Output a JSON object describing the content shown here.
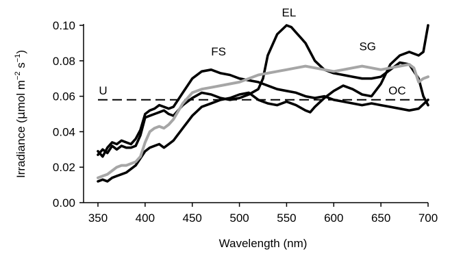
{
  "chart_data": {
    "type": "line",
    "title": "",
    "xlabel": "Wavelength (nm)",
    "ylabel_parts": [
      "Irradiance (",
      "μ",
      "mol m",
      "−2",
      " s",
      "−1",
      ")"
    ],
    "xlim": [
      350,
      700
    ],
    "ylim": [
      0,
      0.1
    ],
    "xticks": [
      350,
      400,
      450,
      500,
      550,
      600,
      650,
      700
    ],
    "xtick_labels": [
      "350",
      "400",
      "450",
      "500",
      "550",
      "600",
      "650",
      "700"
    ],
    "yticks": [
      0,
      0.02,
      0.04,
      0.06,
      0.08,
      0.1
    ],
    "ytick_labels": [
      "0.00",
      "0.02",
      "0.04",
      "0.06",
      "0.08",
      "0.10"
    ],
    "grid": false,
    "legend": "none",
    "series": [
      {
        "name": "U",
        "color": "#000000",
        "style": "dashed",
        "x": [
          350,
          700
        ],
        "y": [
          0.058,
          0.058
        ]
      },
      {
        "name": "FS",
        "color": "#000000",
        "style": "solid",
        "x": [
          350,
          355,
          360,
          365,
          370,
          375,
          380,
          385,
          390,
          395,
          400,
          405,
          410,
          415,
          420,
          425,
          430,
          440,
          450,
          460,
          470,
          480,
          490,
          500,
          510,
          520,
          530,
          540,
          550,
          560,
          570,
          580,
          590,
          600,
          610,
          620,
          630,
          640,
          650,
          660,
          670,
          680,
          690,
          700
        ],
        "y": [
          0.029,
          0.026,
          0.031,
          0.034,
          0.033,
          0.035,
          0.034,
          0.033,
          0.036,
          0.041,
          0.05,
          0.052,
          0.053,
          0.055,
          0.054,
          0.053,
          0.054,
          0.062,
          0.07,
          0.074,
          0.075,
          0.073,
          0.072,
          0.07,
          0.069,
          0.068,
          0.066,
          0.064,
          0.063,
          0.062,
          0.06,
          0.059,
          0.06,
          0.058,
          0.057,
          0.056,
          0.055,
          0.056,
          0.055,
          0.054,
          0.053,
          0.052,
          0.053,
          0.058
        ]
      },
      {
        "name": "EL",
        "color": "#000000",
        "style": "solid",
        "x": [
          350,
          355,
          360,
          365,
          370,
          375,
          380,
          385,
          390,
          395,
          400,
          405,
          410,
          415,
          420,
          425,
          430,
          440,
          450,
          460,
          470,
          480,
          490,
          500,
          510,
          520,
          525,
          530,
          540,
          550,
          555,
          560,
          565,
          570,
          580,
          590,
          600,
          610,
          620,
          630,
          640,
          650,
          660,
          670,
          680,
          690,
          695,
          700
        ],
        "y": [
          0.027,
          0.03,
          0.028,
          0.032,
          0.03,
          0.032,
          0.031,
          0.031,
          0.032,
          0.038,
          0.048,
          0.049,
          0.05,
          0.051,
          0.052,
          0.05,
          0.049,
          0.055,
          0.059,
          0.062,
          0.061,
          0.059,
          0.058,
          0.059,
          0.061,
          0.064,
          0.07,
          0.083,
          0.095,
          0.1,
          0.099,
          0.096,
          0.093,
          0.09,
          0.08,
          0.075,
          0.073,
          0.072,
          0.071,
          0.07,
          0.07,
          0.071,
          0.075,
          0.079,
          0.078,
          0.07,
          0.06,
          0.055
        ]
      },
      {
        "name": "SG",
        "color": "#000000",
        "style": "solid",
        "x": [
          350,
          355,
          360,
          365,
          370,
          375,
          380,
          385,
          390,
          395,
          400,
          405,
          410,
          415,
          420,
          425,
          430,
          440,
          450,
          460,
          470,
          480,
          490,
          500,
          510,
          520,
          530,
          540,
          550,
          560,
          570,
          575,
          580,
          590,
          600,
          610,
          620,
          630,
          640,
          650,
          660,
          670,
          680,
          690,
          695,
          700
        ],
        "y": [
          0.012,
          0.013,
          0.012,
          0.014,
          0.015,
          0.016,
          0.017,
          0.019,
          0.021,
          0.025,
          0.029,
          0.031,
          0.032,
          0.033,
          0.031,
          0.033,
          0.035,
          0.042,
          0.049,
          0.054,
          0.056,
          0.058,
          0.059,
          0.061,
          0.062,
          0.058,
          0.056,
          0.055,
          0.057,
          0.055,
          0.052,
          0.051,
          0.054,
          0.059,
          0.063,
          0.066,
          0.064,
          0.061,
          0.06,
          0.067,
          0.078,
          0.083,
          0.085,
          0.083,
          0.085,
          0.1
        ]
      },
      {
        "name": "OC",
        "color": "#a6a6a6",
        "style": "solid",
        "x": [
          350,
          355,
          360,
          365,
          370,
          375,
          380,
          385,
          390,
          395,
          400,
          405,
          410,
          415,
          420,
          425,
          430,
          440,
          450,
          460,
          470,
          480,
          490,
          500,
          510,
          520,
          530,
          540,
          550,
          560,
          570,
          580,
          590,
          600,
          610,
          620,
          630,
          640,
          650,
          660,
          670,
          680,
          685,
          690,
          695,
          700
        ],
        "y": [
          0.014,
          0.015,
          0.016,
          0.018,
          0.02,
          0.021,
          0.021,
          0.022,
          0.023,
          0.026,
          0.034,
          0.04,
          0.042,
          0.043,
          0.042,
          0.044,
          0.047,
          0.056,
          0.062,
          0.064,
          0.065,
          0.066,
          0.067,
          0.068,
          0.07,
          0.072,
          0.073,
          0.074,
          0.075,
          0.076,
          0.077,
          0.076,
          0.075,
          0.074,
          0.075,
          0.076,
          0.077,
          0.076,
          0.075,
          0.076,
          0.077,
          0.078,
          0.076,
          0.068,
          0.07,
          0.071
        ]
      }
    ],
    "series_labels": [
      {
        "text": "U",
        "x": 351,
        "y": 0.061
      },
      {
        "text": "FS",
        "x": 470,
        "y": 0.083
      },
      {
        "text": "EL",
        "x": 545,
        "y": 0.105
      },
      {
        "text": "SG",
        "x": 627,
        "y": 0.086
      },
      {
        "text": "OC",
        "x": 658,
        "y": 0.061
      }
    ]
  }
}
